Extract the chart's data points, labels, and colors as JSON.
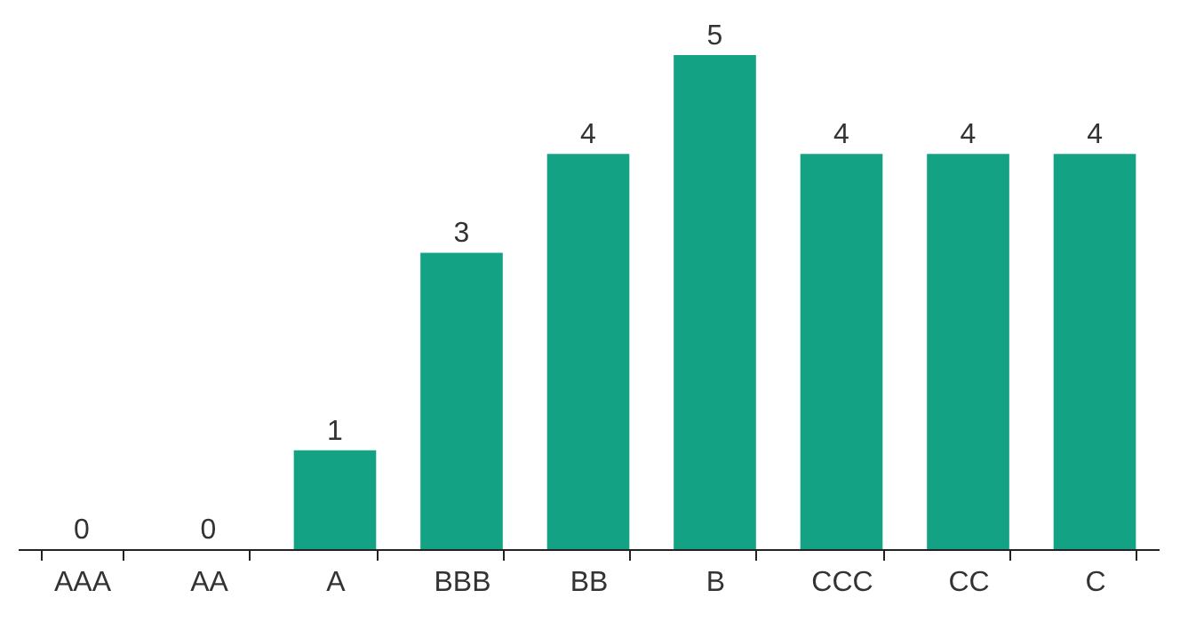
{
  "chart_data": {
    "type": "bar",
    "categories": [
      "AAA",
      "AA",
      "A",
      "BBB",
      "BB",
      "B",
      "CCC",
      "CC",
      "C"
    ],
    "values": [
      0,
      0,
      1,
      3,
      4,
      5,
      4,
      4,
      4
    ],
    "color": "#13a384",
    "data_labels": true,
    "grid": false
  }
}
